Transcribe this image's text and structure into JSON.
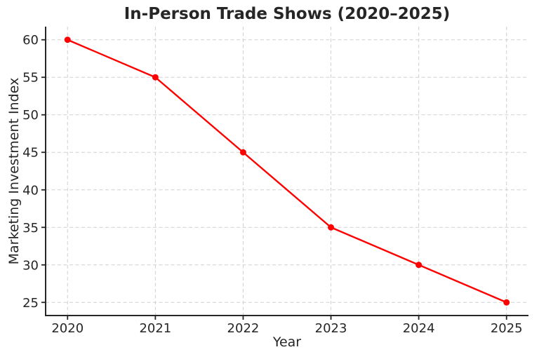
{
  "chart_data": {
    "type": "line",
    "title": "In-Person Trade Shows (2020–2025)",
    "xlabel": "Year",
    "ylabel": "Marketing Investment Index",
    "x": [
      2020,
      2021,
      2022,
      2023,
      2024,
      2025
    ],
    "values": [
      60,
      55,
      45,
      35,
      30,
      25
    ],
    "xticks": [
      2020,
      2021,
      2022,
      2023,
      2024,
      2025
    ],
    "yticks": [
      25,
      30,
      35,
      40,
      45,
      50,
      55,
      60
    ],
    "xlim": [
      2019.75,
      2025.25
    ],
    "ylim": [
      23.25,
      61.75
    ],
    "grid": true,
    "grid_style": "dashed",
    "legend": false,
    "marker": "circle",
    "colors": {
      "line": "#ff0000",
      "marker": "#ff0000",
      "grid": "#d0d0d0",
      "axis": "#262626",
      "text": "#262626",
      "background": "#ffffff"
    }
  }
}
